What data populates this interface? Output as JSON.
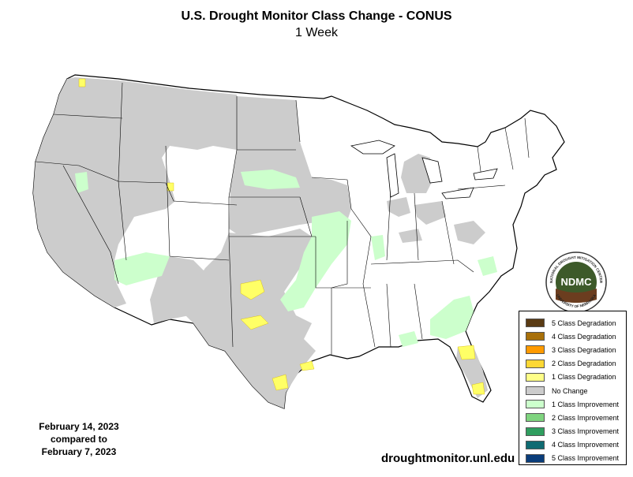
{
  "title": "U.S. Drought Monitor Class Change - CONUS",
  "subtitle": "1 Week",
  "dates": {
    "line1": "February 14, 2023",
    "line2": "compared to",
    "line3": "February 7, 2023"
  },
  "source": "droughtmonitor.unl.edu",
  "logo": {
    "text": "NDMC",
    "ring_text": "NATIONAL DROUGHT MITIGATION CENTER",
    "ring_text_bottom": "UNIVERSITY OF NEBRASKA"
  },
  "legend": [
    {
      "label": "5 Class Degradation",
      "color": "#5a3b14"
    },
    {
      "label": "4 Class Degradation",
      "color": "#a8700a"
    },
    {
      "label": "3 Class Degradation",
      "color": "#ff9a00"
    },
    {
      "label": "2 Class Degradation",
      "color": "#fdd835"
    },
    {
      "label": "1 Class Degradation",
      "color": "#ffff88"
    },
    {
      "label": "No Change",
      "color": "#cccccc"
    },
    {
      "label": "1 Class Improvement",
      "color": "#ccffcc"
    },
    {
      "label": "2 Class Improvement",
      "color": "#7fd47f"
    },
    {
      "label": "3 Class Improvement",
      "color": "#2f9e5f"
    },
    {
      "label": "4 Class Improvement",
      "color": "#0f6b72"
    },
    {
      "label": "5 Class Improvement",
      "color": "#0a3d7a"
    }
  ]
}
